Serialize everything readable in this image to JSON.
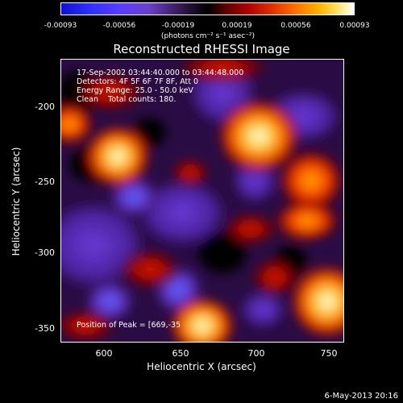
{
  "colorbar": {
    "ticks": [
      "-0.00093",
      "-0.00056",
      "-0.00019",
      "0.00019",
      "0.00056",
      "0.00093"
    ],
    "units": "(photons cm⁻² s⁻¹ asec⁻²)"
  },
  "title": "Reconstructed RHESSI Image",
  "info": {
    "time": "17-Sep-2002 03:44:40.000 to 03:44:48.000",
    "detectors": "Detectors: 4F 5F 6F 7F 8F, Att 0",
    "energy": "Energy Range: 25.0 - 50.0 keV",
    "clean": "Clean    Total counts: 180."
  },
  "peak": "Position of Peak = [669,-35",
  "axes": {
    "xlabel": "Heliocentric X (arcsec)",
    "ylabel": "Heliocentric Y (arcsec)",
    "xticks": [
      "600",
      "650",
      "700",
      "750"
    ],
    "yticks": [
      "-200",
      "-250",
      "-300",
      "-350"
    ]
  },
  "date": "6-May-2013 20:16",
  "colors": {
    "background": "#000000",
    "negative": "#5a3cff",
    "positive_hot": "#ff7000",
    "peak": "#ffffff"
  }
}
